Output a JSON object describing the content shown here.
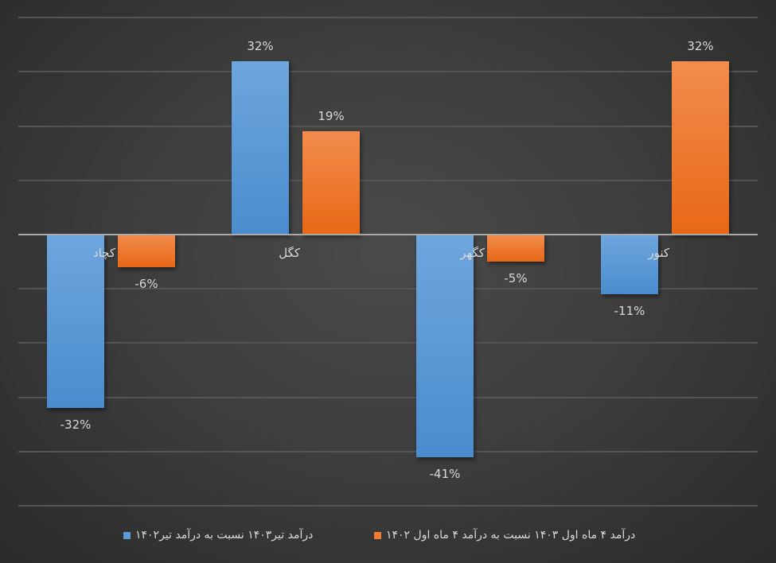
{
  "chart_data": {
    "type": "bar",
    "title": "",
    "xlabel": "",
    "ylabel": "",
    "ylim": [
      -50,
      40
    ],
    "grid": true,
    "legend_position": "bottom",
    "categories": [
      "کچاد",
      "کگل",
      "کگهر",
      "کنور"
    ],
    "series": [
      {
        "name": "درآمد تیر۱۴۰۳ نسبت به درآمد تیر۱۴۰۲",
        "color": "#5b9bd5",
        "values": [
          -32,
          32,
          -41,
          -11
        ],
        "labels": [
          "-32%",
          "32%",
          "-41%",
          "-11%"
        ]
      },
      {
        "name": "درآمد ۴ ماه اول ۱۴۰۳ نسبت به درآمد ۴ ماه اول ۱۴۰۲",
        "color": "#ed7d31",
        "values": [
          -6,
          19,
          -5,
          32
        ],
        "labels": [
          "-6%",
          "19%",
          "-5%",
          "32%"
        ]
      }
    ]
  },
  "legend": {
    "item0": "درآمد تیر۱۴۰۳ نسبت به درآمد تیر۱۴۰۲",
    "item1": "درآمد ۴ ماه اول ۱۴۰۳ نسبت به درآمد ۴ ماه اول ۱۴۰۲",
    "color0": "#5b9bd5",
    "color1": "#ed7d31"
  }
}
